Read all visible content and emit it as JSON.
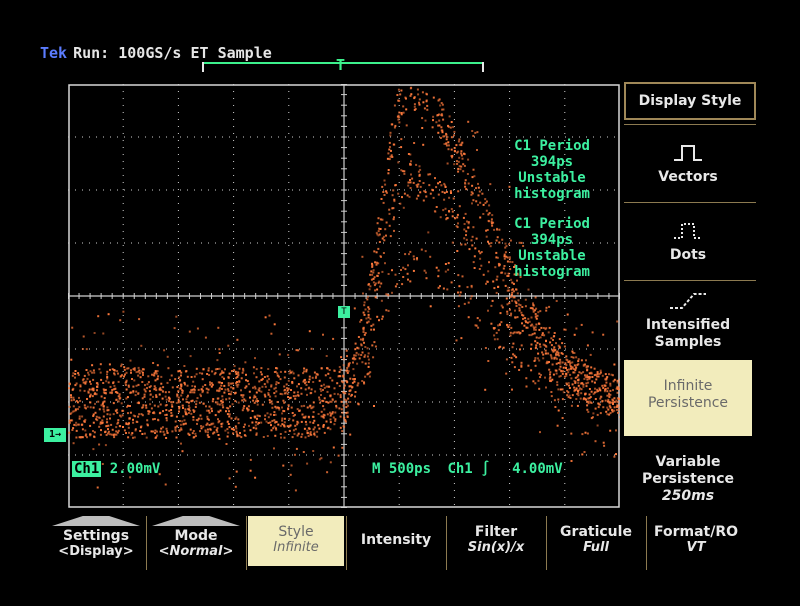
{
  "status": {
    "brand": "Tek",
    "text": "Run: 100GS/s ET  Sample"
  },
  "trigger_marker": "T",
  "measurements": [
    {
      "lines": [
        "C1 Period",
        "394ps",
        "Unstable",
        "histogram"
      ]
    },
    {
      "lines": [
        "C1 Period",
        "394ps",
        "Unstable",
        "histogram"
      ]
    }
  ],
  "readouts": {
    "channel": "Ch1",
    "scale": "2.00mV",
    "timebase": "M  500ps",
    "trig_channel": "Ch1",
    "trig_slope": "∫",
    "trig_level": "4.00mV"
  },
  "ch1_marker": "1→",
  "right_menu": {
    "title": "Display Style",
    "items": [
      {
        "label": "Vectors",
        "icon": "vectors-icon"
      },
      {
        "label": "Dots",
        "icon": "dots-icon"
      },
      {
        "label": "Intensified Samples",
        "icon": "intensified-samples-icon"
      },
      {
        "label": "Infinite Persistence",
        "selected": true
      },
      {
        "label": "Variable Persistence",
        "value": "250ms"
      }
    ]
  },
  "bottom_menu": [
    {
      "label": "Settings",
      "value": "<Display>",
      "tab": true
    },
    {
      "label": "Mode",
      "value": "<Normal>",
      "tab": true
    },
    {
      "label": "Style",
      "value": "Infinite",
      "selected": true
    },
    {
      "label": "Intensity",
      "value": ""
    },
    {
      "label": "Filter",
      "value": "Sin(x)/x"
    },
    {
      "label": "Graticule",
      "value": "Full"
    },
    {
      "label": "Format/RO",
      "value": "VT"
    }
  ],
  "colors": {
    "trace": "#ff7a3c",
    "readout": "#3cf0a0",
    "menu_border": "#a08858",
    "selected": "#f2ecbc"
  }
}
